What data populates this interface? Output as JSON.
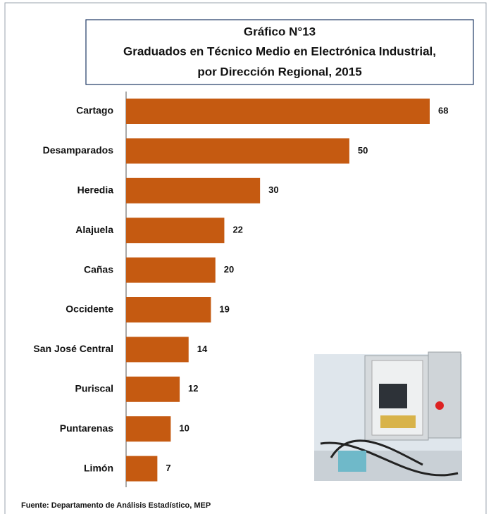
{
  "chart_data": {
    "type": "barh",
    "title_lines": [
      "Gráfico N°13",
      "Graduados en Técnico Medio en Electrónica Industrial,",
      "por Dirección Regional, 2015"
    ],
    "categories": [
      "Cartago",
      "Desamparados",
      "Heredia",
      "Alajuela",
      "Cañas",
      "Occidente",
      "San José Central",
      "Puriscal",
      "Puntarenas",
      "Limón"
    ],
    "values": [
      68,
      50,
      30,
      22,
      20,
      19,
      14,
      12,
      10,
      7
    ],
    "color": "#c55a11",
    "source": "Fuente: Departamento de Análisis Estadístico, MEP"
  }
}
